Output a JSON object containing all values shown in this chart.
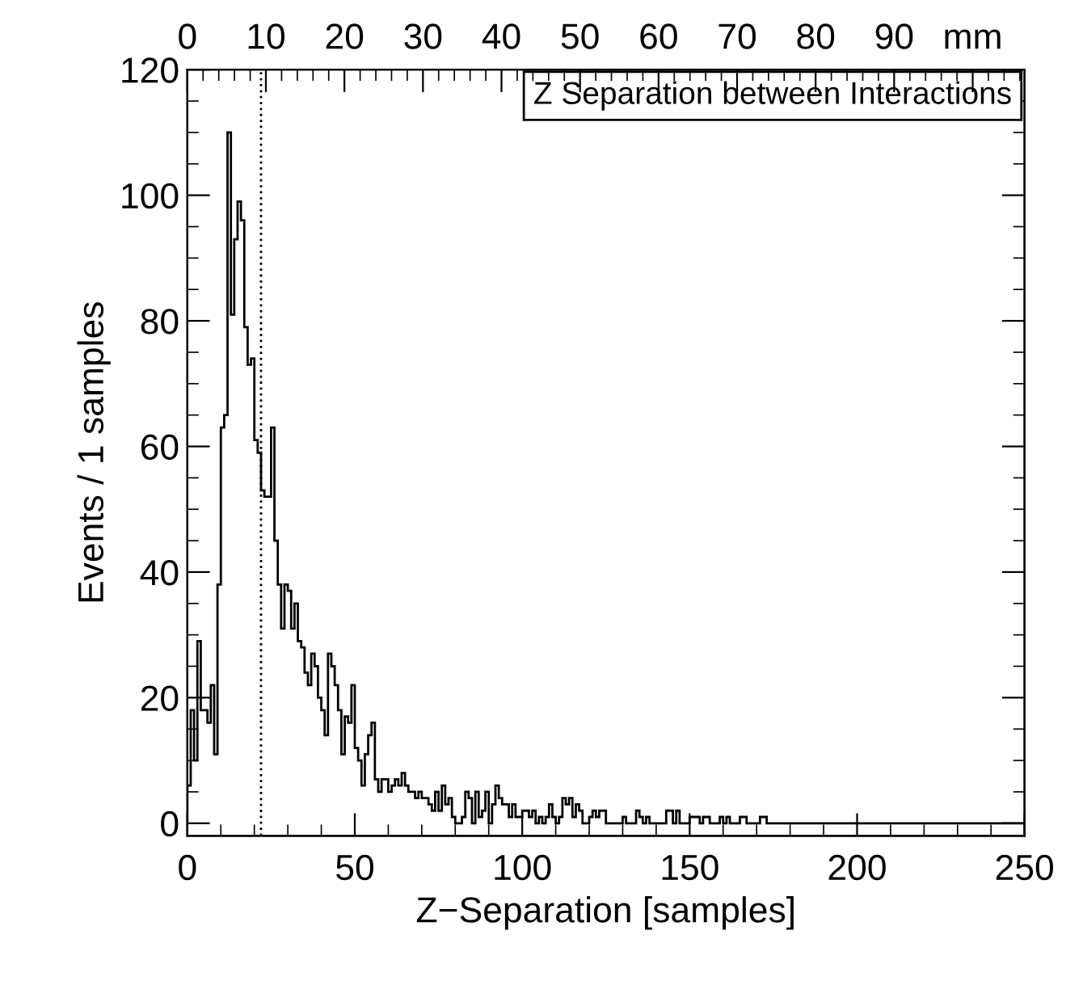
{
  "chart_data": {
    "type": "histogram",
    "xlabel": "Z−Separation [samples]",
    "ylabel": "Events / 1 samples",
    "annotations": [
      "Z Separation between Interactions"
    ],
    "color": "#000000",
    "bins": [
      0,
      1,
      2,
      3,
      4,
      5,
      6,
      7,
      8,
      9,
      10,
      11,
      12,
      13,
      14,
      15,
      16,
      17,
      18,
      19,
      20,
      21,
      22,
      23,
      24,
      25,
      26,
      27,
      28,
      29,
      30,
      31,
      32,
      33,
      34,
      35,
      36,
      37,
      38,
      39,
      40,
      41,
      42,
      43,
      44,
      45,
      46,
      47,
      48,
      49,
      50,
      51,
      52,
      53,
      54,
      55,
      56,
      57,
      58,
      59,
      60,
      61,
      62,
      63,
      64,
      65,
      66,
      67,
      68,
      69,
      70,
      71,
      72,
      73,
      74,
      75,
      76,
      77,
      78,
      79,
      80,
      81,
      82,
      83,
      84,
      85,
      86,
      87,
      88,
      89,
      90,
      91,
      92,
      93,
      94,
      95,
      96,
      97,
      98,
      99,
      100,
      101,
      102,
      103,
      104,
      105,
      106,
      107,
      108,
      109,
      110,
      111,
      112,
      113,
      114,
      115,
      116,
      117,
      118,
      119,
      120,
      121,
      122,
      123,
      124,
      125,
      126,
      127,
      128,
      129,
      130,
      131,
      132,
      133,
      134,
      135,
      136,
      137,
      138,
      139,
      140,
      141,
      142,
      143,
      144,
      145,
      146,
      147,
      148,
      149,
      150,
      151,
      152,
      153,
      154,
      155,
      156,
      157,
      158,
      159,
      160,
      161,
      162,
      163,
      164,
      165,
      166,
      167,
      168,
      169,
      170,
      171,
      172,
      173,
      174,
      175,
      176,
      177,
      178,
      179,
      180,
      181,
      182,
      183,
      184,
      185,
      186,
      187,
      188,
      189,
      190,
      191,
      192,
      193,
      194,
      195,
      196,
      197,
      198,
      199,
      200,
      201,
      202,
      203,
      204,
      205,
      206,
      207,
      208,
      209,
      210,
      211,
      212,
      213,
      214,
      215,
      216,
      217,
      218,
      219,
      220,
      221,
      222,
      223,
      224,
      225,
      226,
      227,
      228,
      229,
      230,
      231,
      232,
      233,
      234,
      235,
      236,
      237,
      238,
      239,
      240,
      241,
      242,
      243,
      244,
      245,
      246,
      247,
      248,
      249,
      250
    ],
    "values": [
      6,
      18,
      10,
      29,
      18,
      18,
      16,
      22,
      11,
      38,
      63,
      65,
      110,
      81,
      93,
      99,
      96,
      79,
      73,
      74,
      61,
      59,
      53,
      52,
      52,
      63,
      45,
      38,
      31,
      38,
      37,
      31,
      35,
      29,
      28,
      24,
      22,
      27,
      25,
      20,
      18,
      14,
      27,
      25,
      22,
      18,
      11,
      17,
      16,
      22,
      12,
      10,
      6,
      11,
      14,
      16,
      7,
      5,
      7,
      7,
      5,
      6,
      7,
      6,
      8,
      6,
      5,
      5,
      4,
      5,
      4,
      4,
      3,
      2,
      5,
      2,
      6,
      3,
      4,
      1,
      0,
      0,
      1,
      5,
      4,
      0,
      5,
      1,
      2,
      5,
      0,
      3,
      6,
      4,
      3,
      3,
      1,
      3,
      1,
      1,
      2,
      2,
      1,
      2,
      0,
      1,
      0,
      1,
      3,
      1,
      0,
      1,
      4,
      3,
      4,
      1,
      3,
      2,
      0,
      0,
      1,
      2,
      1,
      2,
      2,
      0,
      0,
      0,
      0,
      0,
      1,
      0,
      0,
      0,
      2,
      1,
      0,
      1,
      0,
      0,
      0,
      0,
      0,
      2,
      2,
      0,
      2,
      0,
      0,
      0,
      1,
      1,
      1,
      0,
      1,
      1,
      0,
      0,
      0,
      1,
      0,
      1,
      0,
      0,
      0,
      1,
      1,
      0,
      0,
      0,
      0,
      1,
      1,
      0,
      0,
      0,
      0,
      0,
      0,
      0,
      0,
      0,
      0,
      0,
      0,
      0,
      0,
      0,
      0,
      0,
      0,
      0,
      0,
      0,
      0,
      0,
      0,
      0,
      0,
      0,
      0,
      0,
      0,
      0,
      0,
      0,
      0,
      0,
      0,
      0,
      0,
      0,
      0,
      0,
      0,
      0,
      0,
      0,
      0,
      0,
      0,
      0,
      0,
      0,
      0,
      0,
      0,
      0,
      0,
      0,
      0,
      0,
      0,
      0,
      0,
      0,
      0,
      0,
      0,
      0,
      0,
      0,
      0,
      0,
      0,
      0,
      0,
      0,
      0,
      0
    ],
    "xlim": [
      0,
      250
    ],
    "xticks": [
      0,
      {
        "value": 10,
        "label": null
      },
      {
        "value": 20,
        "label": null
      },
      {
        "value": 30,
        "label": null
      },
      {
        "value": 40,
        "label": null
      },
      50,
      {
        "value": 60,
        "label": null
      },
      {
        "value": 70,
        "label": null
      },
      {
        "value": 80,
        "label": null
      },
      {
        "value": 90,
        "label": null
      },
      100,
      {
        "value": 110,
        "label": null
      },
      {
        "value": 120,
        "label": null
      },
      {
        "value": 130,
        "label": null
      },
      {
        "value": 140,
        "label": null
      },
      150,
      {
        "value": 160,
        "label": null
      },
      {
        "value": 170,
        "label": null
      },
      {
        "value": 180,
        "label": null
      },
      {
        "value": 190,
        "label": null
      },
      200,
      {
        "value": 210,
        "label": null
      },
      {
        "value": 220,
        "label": null
      },
      {
        "value": 230,
        "label": null
      },
      {
        "value": 240,
        "label": null
      },
      250
    ],
    "ylim": [
      -2,
      120
    ],
    "yticks": [
      0,
      {
        "value": 5,
        "label": null
      },
      {
        "value": 10,
        "label": null
      },
      {
        "value": 15,
        "label": null
      },
      20,
      {
        "value": 25,
        "label": null
      },
      {
        "value": 30,
        "label": null
      },
      {
        "value": 35,
        "label": null
      },
      40,
      {
        "value": 45,
        "label": null
      },
      {
        "value": 50,
        "label": null
      },
      {
        "value": 55,
        "label": null
      },
      60,
      {
        "value": 65,
        "label": null
      },
      {
        "value": 70,
        "label": null
      },
      {
        "value": 75,
        "label": null
      },
      80,
      {
        "value": 85,
        "label": null
      },
      {
        "value": 90,
        "label": null
      },
      {
        "value": 95,
        "label": null
      },
      100,
      {
        "value": 105,
        "label": null
      },
      {
        "value": 110,
        "label": null
      },
      {
        "value": 115,
        "label": null
      },
      120
    ],
    "x2lim": [
      0,
      106.6
    ],
    "x2ticks": [
      0,
      {
        "value": 2,
        "label": null
      },
      {
        "value": 4,
        "label": null
      },
      {
        "value": 6,
        "label": null
      },
      {
        "value": 8,
        "label": null
      },
      10,
      {
        "value": 12,
        "label": null
      },
      {
        "value": 14,
        "label": null
      },
      {
        "value": 16,
        "label": null
      },
      {
        "value": 18,
        "label": null
      },
      20,
      {
        "value": 22,
        "label": null
      },
      {
        "value": 24,
        "label": null
      },
      {
        "value": 26,
        "label": null
      },
      {
        "value": 28,
        "label": null
      },
      30,
      {
        "value": 32,
        "label": null
      },
      {
        "value": 34,
        "label": null
      },
      {
        "value": 36,
        "label": null
      },
      {
        "value": 38,
        "label": null
      },
      40,
      {
        "value": 42,
        "label": null
      },
      {
        "value": 44,
        "label": null
      },
      {
        "value": 46,
        "label": null
      },
      {
        "value": 48,
        "label": null
      },
      50,
      {
        "value": 52,
        "label": null
      },
      {
        "value": 54,
        "label": null
      },
      {
        "value": 56,
        "label": null
      },
      {
        "value": 58,
        "label": null
      },
      60,
      {
        "value": 62,
        "label": null
      },
      {
        "value": 64,
        "label": null
      },
      {
        "value": 66,
        "label": null
      },
      {
        "value": 68,
        "label": null
      },
      70,
      {
        "value": 72,
        "label": null
      },
      {
        "value": 74,
        "label": null
      },
      {
        "value": 76,
        "label": null
      },
      {
        "value": 78,
        "label": null
      },
      80,
      {
        "value": 82,
        "label": null
      },
      {
        "value": 84,
        "label": null
      },
      {
        "value": 86,
        "label": null
      },
      {
        "value": 88,
        "label": null
      },
      90,
      {
        "value": 92,
        "label": null
      },
      {
        "value": 94,
        "label": null
      },
      {
        "value": 96,
        "label": null
      },
      {
        "value": 98,
        "label": null
      },
      {
        "value": 100,
        "label": "mm"
      },
      {
        "value": 102,
        "label": null
      },
      {
        "value": 104,
        "label": null
      },
      {
        "value": 106,
        "label": null
      }
    ],
    "ref_lines": [
      {
        "axis": "x",
        "value": 22,
        "line_style": "dotted"
      }
    ],
    "grid": false
  }
}
